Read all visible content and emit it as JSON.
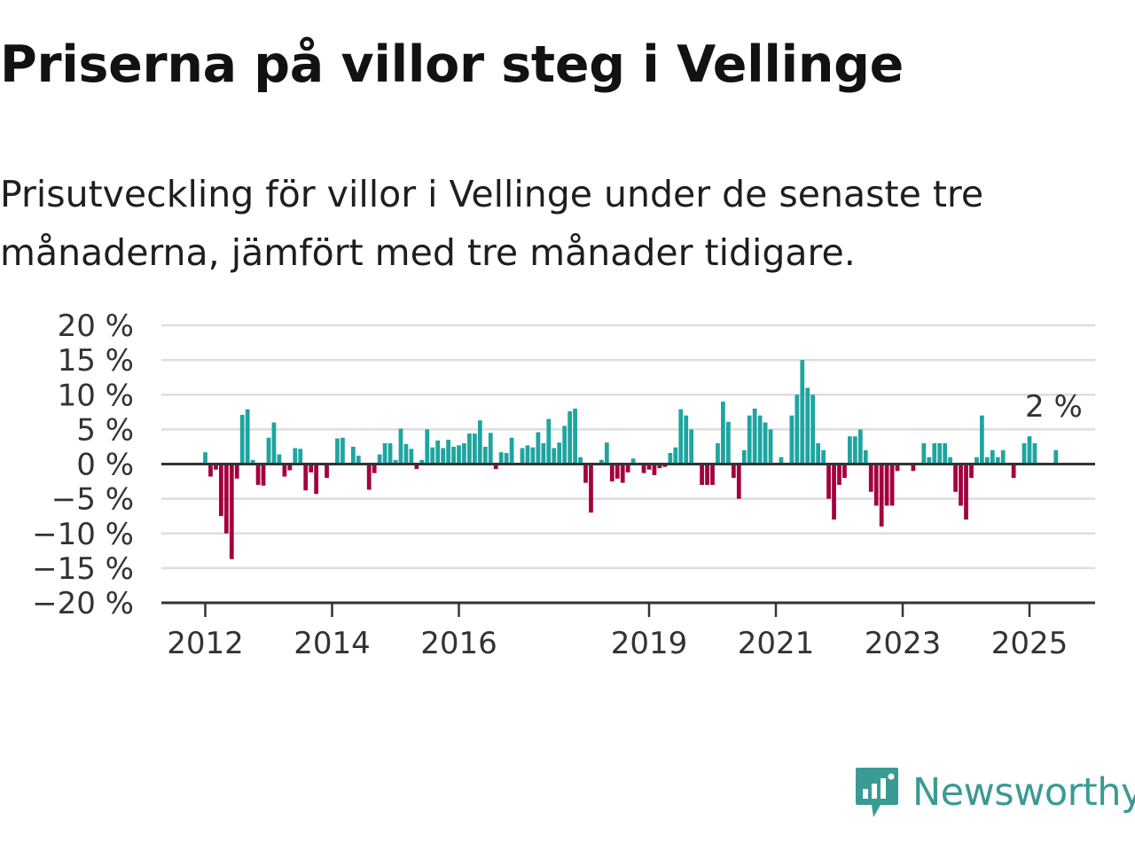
{
  "header": {
    "title": "Priserna på villor steg i Vellinge",
    "subtitle": "Prisutveckling för villor i Vellinge under de senaste tre månaderna, jämfört med tre månader tidigare."
  },
  "brand": {
    "name": "Newsworthy",
    "logo_icon": "newsworthy-logo-icon"
  },
  "colors": {
    "positive": "#1ea5a0",
    "negative": "#a3003f",
    "grid": "#dddddd",
    "axis": "#333333",
    "brand": "#3a9a94"
  },
  "chart_data": {
    "type": "bar",
    "title": "Priserna på villor steg i Vellinge",
    "xlabel": "",
    "ylabel": "",
    "ylim": [
      -20,
      20
    ],
    "y_ticks": [
      20,
      15,
      10,
      5,
      0,
      -5,
      -10,
      -15,
      -20
    ],
    "y_tick_labels": [
      "20 %",
      "15 %",
      "10 %",
      "5 %",
      "0 %",
      "−5 %",
      "−10 %",
      "−15 %",
      "−20 %"
    ],
    "x_ticks": [
      2012,
      2014,
      2016,
      2019,
      2021,
      2023,
      2025
    ],
    "grid": true,
    "unit": "%",
    "last_value_label": "2 %",
    "x_start": "2012-01",
    "interval": "monthly",
    "values": [
      1.7,
      -1.8,
      -0.8,
      -7.5,
      -10,
      -13.7,
      -2.1,
      7.1,
      7.9,
      0.6,
      -3,
      -3.1,
      3.8,
      6,
      1.4,
      -1.8,
      -0.9,
      2.3,
      2.2,
      -3.8,
      -1.2,
      -4.3,
      0,
      -2,
      0,
      3.7,
      3.8,
      0,
      2.5,
      1.2,
      0,
      -3.7,
      -1.3,
      1.4,
      3,
      3,
      0.6,
      5.1,
      2.9,
      2.2,
      -0.7,
      0.6,
      5,
      2.4,
      3.4,
      2.3,
      3.5,
      2.5,
      2.7,
      3,
      4.4,
      4.4,
      6.3,
      2.5,
      4.5,
      -0.7,
      1.7,
      1.6,
      3.8,
      0,
      2.3,
      2.7,
      2.4,
      4.6,
      3,
      6.5,
      2.3,
      3.1,
      5.5,
      7.6,
      8,
      1,
      -2.7,
      -7,
      0,
      0.6,
      3.1,
      -2.5,
      -2.1,
      -2.7,
      -1.2,
      0.8,
      0,
      -1.3,
      -0.8,
      -1.6,
      -0.6,
      -0.4,
      1.6,
      2.4,
      7.9,
      7,
      5,
      0,
      -3,
      -3,
      -3,
      3,
      9,
      6.1,
      -2,
      -5,
      2,
      7,
      8,
      7,
      6,
      5,
      0,
      1,
      0,
      7,
      10,
      15,
      11,
      10,
      3,
      2,
      -5,
      -8,
      -3,
      -2,
      4,
      4,
      5,
      2,
      -4,
      -6,
      -9,
      -6,
      -6,
      -1,
      0,
      0,
      -1,
      0,
      3,
      1,
      3,
      3,
      3,
      1,
      -4,
      -6,
      -8,
      -2,
      1,
      7,
      1,
      2,
      1,
      2,
      0,
      -2,
      0,
      3,
      4,
      3,
      0,
      0,
      0,
      2
    ]
  }
}
